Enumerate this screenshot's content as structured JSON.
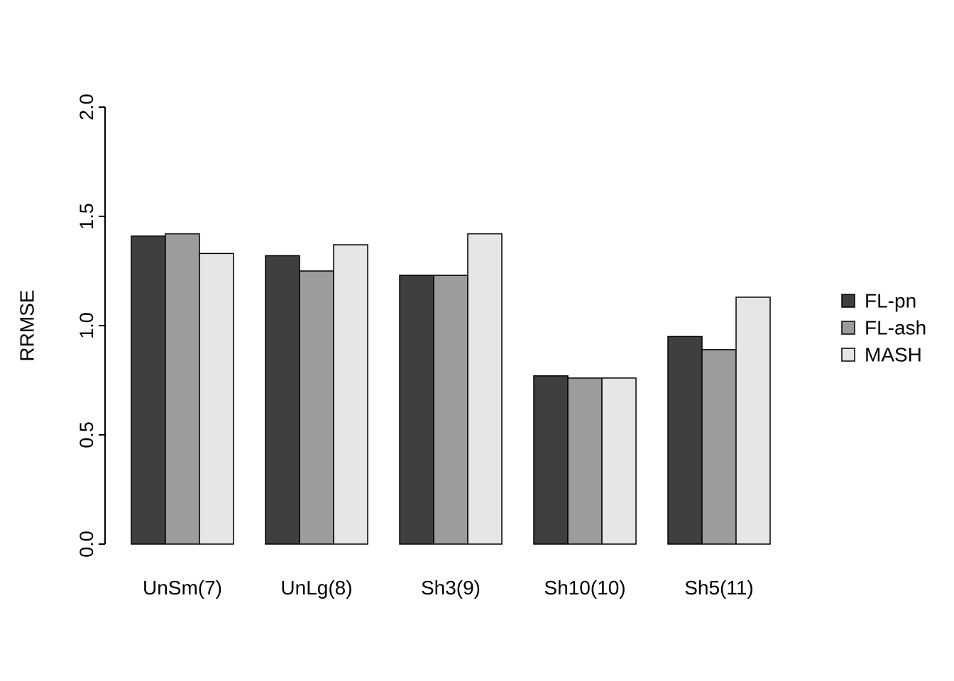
{
  "chart_data": {
    "type": "bar",
    "title": "",
    "xlabel": "",
    "ylabel": "RRMSE",
    "ylim": [
      0,
      2
    ],
    "ytick_labels": [
      "0.0",
      "0.5",
      "1.0",
      "1.5",
      "2.0"
    ],
    "ytick_values": [
      0.0,
      0.5,
      1.0,
      1.5,
      2.0
    ],
    "grid": false,
    "legend_position": "right",
    "categories": [
      "UnSm(7)",
      "UnLg(8)",
      "Sh3(9)",
      "Sh10(10)",
      "Sh5(11)"
    ],
    "series": [
      {
        "name": "FL-pn",
        "color": "#3f3f3f",
        "values": [
          1.41,
          1.32,
          1.23,
          0.77,
          0.95
        ]
      },
      {
        "name": "FL-ash",
        "color": "#9c9c9c",
        "values": [
          1.42,
          1.25,
          1.23,
          0.76,
          0.89
        ]
      },
      {
        "name": "MASH",
        "color": "#e6e6e6",
        "values": [
          1.33,
          1.37,
          1.42,
          0.76,
          1.13
        ]
      }
    ],
    "bar_border_color": "#000000",
    "axis_color": "#000000"
  }
}
